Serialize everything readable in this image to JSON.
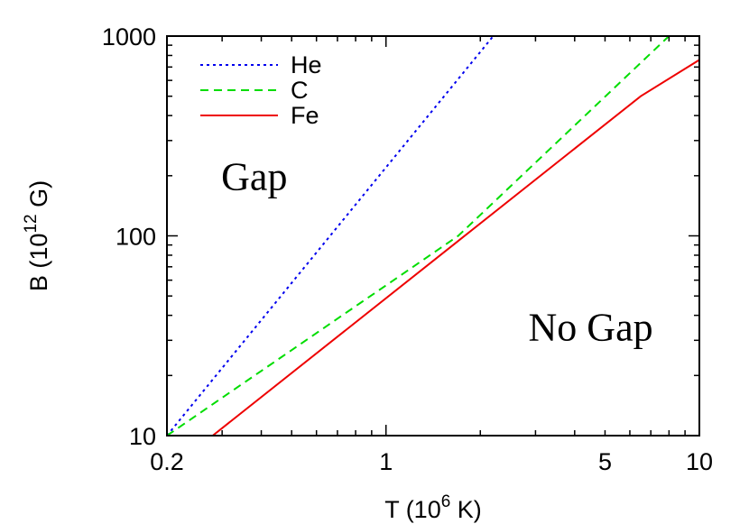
{
  "chart_data": {
    "type": "line",
    "title": "",
    "xlabel": {
      "main": "T (10",
      "sup": "6",
      "tail": " K)"
    },
    "ylabel": {
      "main": "B (10",
      "sup": "12",
      "tail": " G)"
    },
    "xscale": "log",
    "yscale": "log",
    "xlim": [
      0.2,
      10
    ],
    "ylim": [
      10,
      1000
    ],
    "x_ticks": [
      {
        "value": 0.2,
        "label": "0.2"
      },
      {
        "value": 1,
        "label": "1"
      },
      {
        "value": 5,
        "label": "5"
      },
      {
        "value": 10,
        "label": "10"
      }
    ],
    "y_ticks": [
      {
        "value": 10,
        "label": "10"
      },
      {
        "value": 100,
        "label": "100"
      },
      {
        "value": 1000,
        "label": "1000"
      }
    ],
    "grid": false,
    "legend_position": "top-left",
    "series": [
      {
        "name": "He",
        "color": "#0000ee",
        "dash": "dotted",
        "points": [
          [
            0.2,
            10
          ],
          [
            2.2,
            1000
          ]
        ]
      },
      {
        "name": "C",
        "color": "#00dd00",
        "dash": "dashed",
        "points": [
          [
            0.2,
            10
          ],
          [
            1.7,
            100
          ],
          [
            8.0,
            1000
          ]
        ]
      },
      {
        "name": "Fe",
        "color": "#ee0000",
        "dash": "solid",
        "points": [
          [
            0.28,
            10
          ],
          [
            6.5,
            500
          ],
          [
            10,
            760
          ]
        ]
      }
    ],
    "annotations": [
      {
        "text": "Gap",
        "x": 0.38,
        "y": 170
      },
      {
        "text": "No Gap",
        "x": 4.5,
        "y": 30
      }
    ]
  }
}
